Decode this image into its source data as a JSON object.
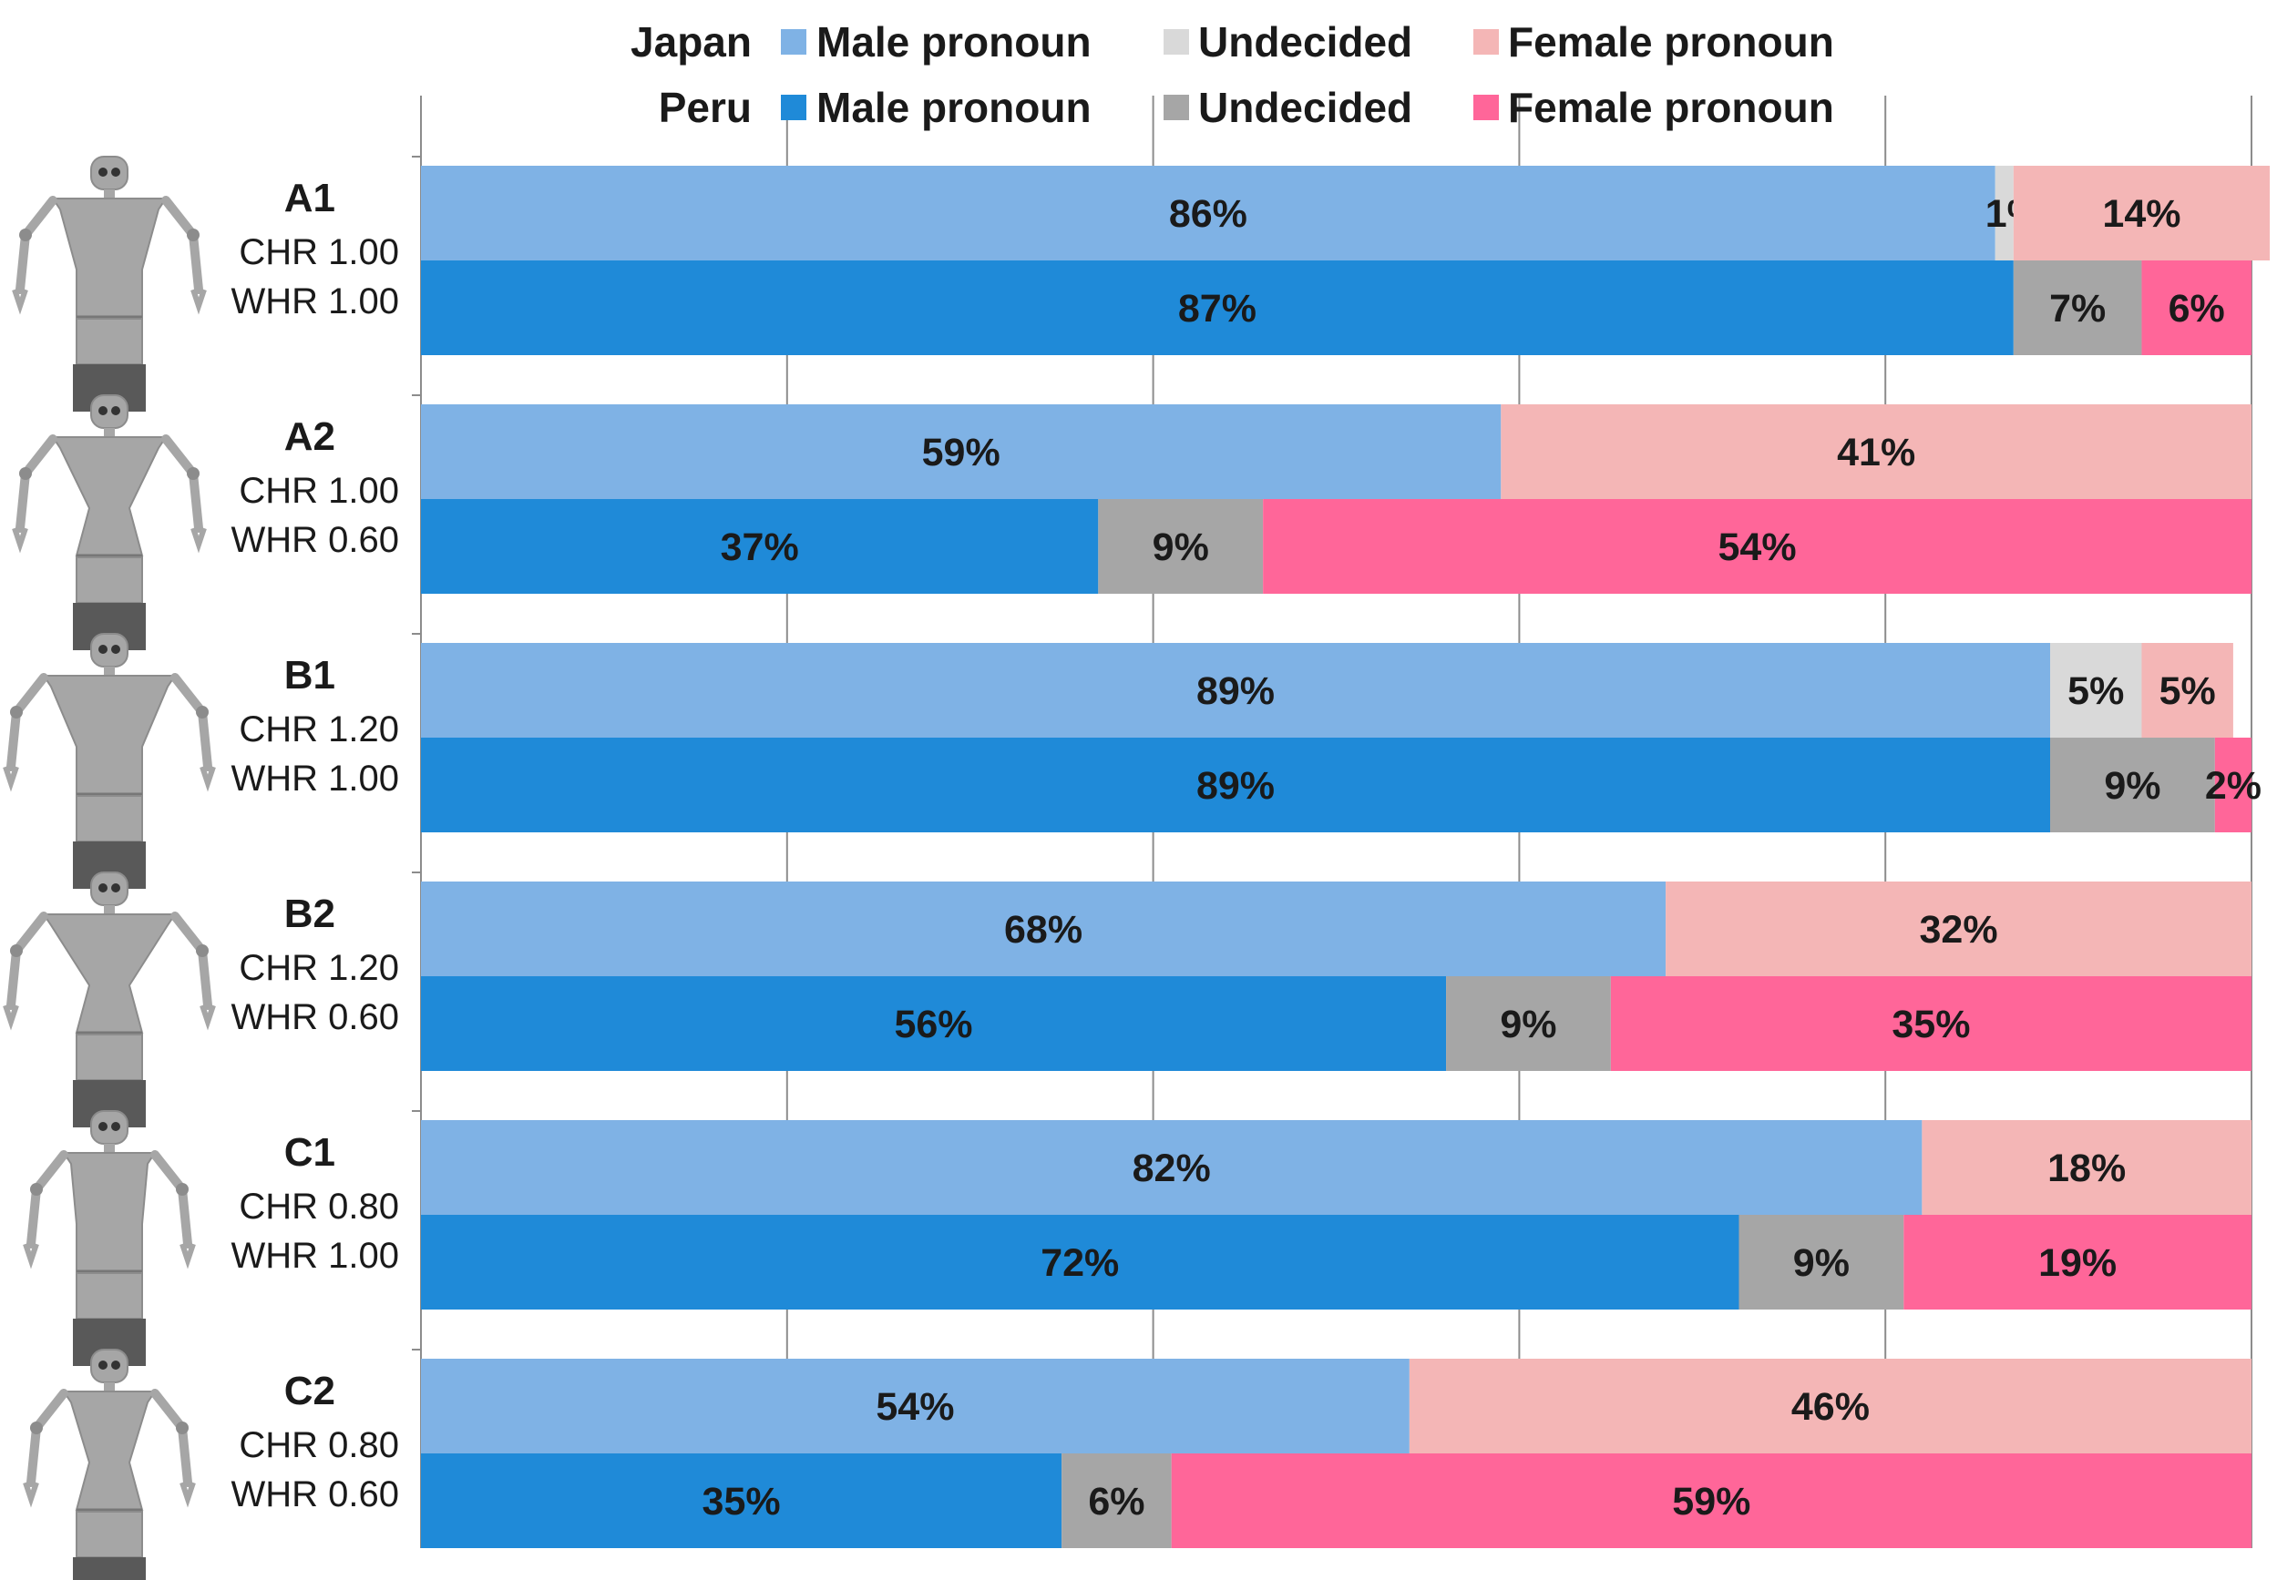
{
  "chart_data": {
    "type": "bar",
    "orientation": "horizontal",
    "stacked": true,
    "normalized_percent": true,
    "legend": {
      "rows": [
        {
          "group": "Japan",
          "entries": [
            "Male pronoun",
            "Undecided",
            "Female pronoun"
          ]
        },
        {
          "group": "Peru",
          "entries": [
            "Male pronoun",
            "Undecided",
            "Female pronoun"
          ]
        }
      ],
      "placement": "top"
    },
    "colors": {
      "Japan": {
        "male": "#7fb2e5",
        "undecided": "#d9d9d9",
        "female": "#f4b6b6"
      },
      "Peru": {
        "male": "#1f8ad8",
        "undecided": "#a6a6a6",
        "female": "#ff6699"
      }
    },
    "segment_order": [
      "male",
      "undecided",
      "female"
    ],
    "xlim": [
      0,
      100
    ],
    "grid": true,
    "robots": [
      {
        "name": "A1",
        "chr": "CHR 1.00",
        "whr": "WHR 1.00",
        "japan": {
          "values": [
            86,
            1,
            14
          ],
          "labels": [
            "86%",
            "1%",
            "14%"
          ]
        },
        "peru": {
          "values": [
            87,
            7,
            6
          ],
          "labels": [
            "87%",
            "7%",
            "6%"
          ]
        }
      },
      {
        "name": "A2",
        "chr": "CHR 1.00",
        "whr": "WHR 0.60",
        "japan": {
          "values": [
            59,
            0,
            41
          ],
          "labels": [
            "59%",
            "",
            "41%"
          ]
        },
        "peru": {
          "values": [
            37,
            9,
            54
          ],
          "labels": [
            "37%",
            "9%",
            "54%"
          ]
        }
      },
      {
        "name": "B1",
        "chr": "CHR 1.20",
        "whr": "WHR 1.00",
        "japan": {
          "values": [
            89,
            5,
            5
          ],
          "labels": [
            "89%",
            "5%",
            "5%"
          ]
        },
        "peru": {
          "values": [
            89,
            9,
            2
          ],
          "labels": [
            "89%",
            "9%",
            "2%"
          ]
        }
      },
      {
        "name": "B2",
        "chr": "CHR 1.20",
        "whr": "WHR 0.60",
        "japan": {
          "values": [
            68,
            0,
            32
          ],
          "labels": [
            "68%",
            "",
            "32%"
          ]
        },
        "peru": {
          "values": [
            56,
            9,
            35
          ],
          "labels": [
            "56%",
            "9%",
            "35%"
          ]
        }
      },
      {
        "name": "C1",
        "chr": "CHR 0.80",
        "whr": "WHR 1.00",
        "japan": {
          "values": [
            82,
            0,
            18
          ],
          "labels": [
            "82%",
            "",
            "18%"
          ]
        },
        "peru": {
          "values": [
            72,
            9,
            19
          ],
          "labels": [
            "72%",
            "9%",
            "19%"
          ]
        }
      },
      {
        "name": "C2",
        "chr": "CHR 0.80",
        "whr": "WHR 0.60",
        "japan": {
          "values": [
            54,
            0,
            46
          ],
          "labels": [
            "54%",
            "",
            "46%"
          ]
        },
        "peru": {
          "values": [
            35,
            6,
            59
          ],
          "labels": [
            "35%",
            "6%",
            "59%"
          ]
        }
      }
    ]
  }
}
